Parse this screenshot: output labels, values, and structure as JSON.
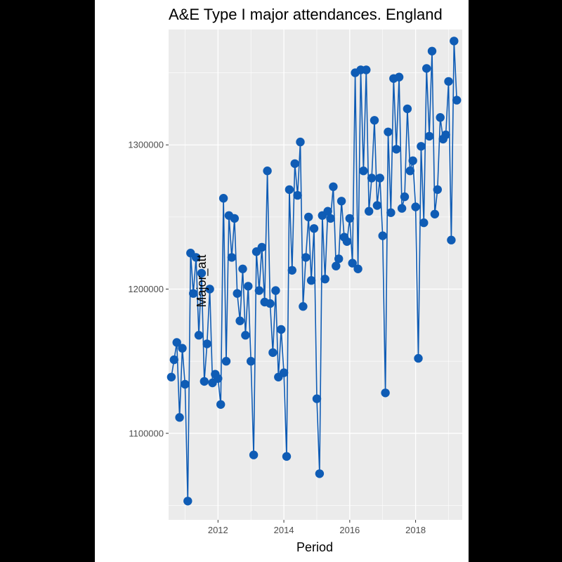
{
  "chart_data": {
    "type": "line",
    "title": "A&E Type I major attendances. England",
    "xlabel": "Period",
    "ylabel": "Major_att",
    "x_ticks": [
      "2012",
      "2014",
      "2016",
      "2018"
    ],
    "y_ticks": [
      "1100000",
      "1200000",
      "1300000"
    ],
    "xlim": [
      "2010-07-01",
      "2019-06-01"
    ],
    "ylim": [
      1040000,
      1380000
    ],
    "grid": true,
    "legend": "none",
    "colors": {
      "series": "#0F5CB5",
      "panel": "#EBEBEB",
      "grid": "#FFFFFF"
    },
    "series": [
      {
        "x": [
          "2010-08",
          "2010-09",
          "2010-10",
          "2010-11",
          "2010-12",
          "2011-01",
          "2011-02",
          "2011-03",
          "2011-04",
          "2011-05",
          "2011-06",
          "2011-07",
          "2011-08",
          "2011-09",
          "2011-10",
          "2011-11",
          "2011-12",
          "2012-01",
          "2012-02",
          "2012-03",
          "2012-04",
          "2012-05",
          "2012-06",
          "2012-07",
          "2012-08",
          "2012-09",
          "2012-10",
          "2012-11",
          "2012-12",
          "2013-01",
          "2013-02",
          "2013-03",
          "2013-04",
          "2013-05",
          "2013-06",
          "2013-07",
          "2013-08",
          "2013-09",
          "2013-10",
          "2013-11",
          "2013-12",
          "2014-01",
          "2014-02",
          "2014-03",
          "2014-04",
          "2014-05",
          "2014-06",
          "2014-07",
          "2014-08",
          "2014-09",
          "2014-10",
          "2014-11",
          "2014-12",
          "2015-01",
          "2015-02",
          "2015-03",
          "2015-04",
          "2015-05",
          "2015-06",
          "2015-07",
          "2015-08",
          "2015-09",
          "2015-10",
          "2015-11",
          "2015-12",
          "2016-01",
          "2016-02",
          "2016-03",
          "2016-04",
          "2016-05",
          "2016-06",
          "2016-07",
          "2016-08",
          "2016-09",
          "2016-10",
          "2016-11",
          "2016-12",
          "2017-01",
          "2017-02",
          "2017-03",
          "2017-04",
          "2017-05",
          "2017-06",
          "2017-07",
          "2017-08",
          "2017-09",
          "2017-10",
          "2017-11",
          "2017-12",
          "2018-01",
          "2018-02",
          "2018-03",
          "2018-04",
          "2018-05",
          "2018-06",
          "2018-07",
          "2018-08",
          "2018-09",
          "2018-10",
          "2018-11",
          "2018-12",
          "2019-01",
          "2019-02",
          "2019-03",
          "2019-04"
        ],
        "y": [
          1139000,
          1151000,
          1163000,
          1111000,
          1159000,
          1134000,
          1053000,
          1225000,
          1197000,
          1222000,
          1168000,
          1211000,
          1136000,
          1162000,
          1200000,
          1135000,
          1141000,
          1138000,
          1120000,
          1263000,
          1150000,
          1251000,
          1222000,
          1249000,
          1197000,
          1178000,
          1214000,
          1168000,
          1202000,
          1150000,
          1085000,
          1226000,
          1199000,
          1229000,
          1191000,
          1282000,
          1190000,
          1156000,
          1199000,
          1139000,
          1172000,
          1142000,
          1084000,
          1269000,
          1213000,
          1287000,
          1265000,
          1302000,
          1188000,
          1222000,
          1250000,
          1206000,
          1242000,
          1124000,
          1072000,
          1251000,
          1207000,
          1254000,
          1249000,
          1271000,
          1216000,
          1221000,
          1261000,
          1236000,
          1233000,
          1249000,
          1218000,
          1350000,
          1214000,
          1352000,
          1282000,
          1352000,
          1254000,
          1277000,
          1317000,
          1258000,
          1277000,
          1237000,
          1128000,
          1309000,
          1253000,
          1346000,
          1297000,
          1347000,
          1256000,
          1264000,
          1325000,
          1282000,
          1289000,
          1257000,
          1152000,
          1299000,
          1246000,
          1353000,
          1306000,
          1365000,
          1252000,
          1269000,
          1319000,
          1304000,
          1307000,
          1344000,
          1234000,
          1372000,
          1331000
        ]
      }
    ]
  }
}
